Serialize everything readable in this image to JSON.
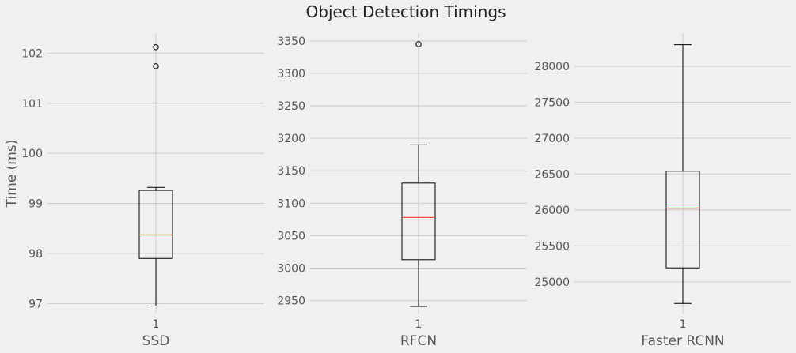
{
  "chart_data": {
    "title": "Object Detection Timings",
    "type": "box",
    "grid": true,
    "subplots": [
      {
        "xlabel": "SSD",
        "ylabel": "Time (ms)",
        "xticks": [
          "1"
        ],
        "ylim": [
          96.8,
          102.4
        ],
        "yticks": [
          97,
          98,
          99,
          100,
          101,
          102
        ],
        "ytick_labels": [
          "97",
          "98",
          "99",
          "100",
          "101",
          "102"
        ],
        "box": {
          "whislo": 96.95,
          "q1": 97.9,
          "med": 98.37,
          "q3": 99.26,
          "whishi": 99.32,
          "fliers": [
            101.74,
            102.12
          ]
        }
      },
      {
        "xlabel": "RFCN",
        "ylabel": "",
        "xticks": [
          "1"
        ],
        "ylim": [
          2930,
          3362
        ],
        "yticks": [
          2950,
          3000,
          3050,
          3100,
          3150,
          3200,
          3250,
          3300,
          3350
        ],
        "ytick_labels": [
          "2950",
          "3000",
          "3050",
          "3100",
          "3150",
          "3200",
          "3250",
          "3300",
          "3350"
        ],
        "box": {
          "whislo": 2941,
          "q1": 3013,
          "med": 3078,
          "q3": 3131,
          "whishi": 3190,
          "fliers": [
            3345
          ]
        }
      },
      {
        "xlabel": "Faster RCNN",
        "ylabel": "",
        "xticks": [
          "1"
        ],
        "ylim": [
          24560,
          28460
        ],
        "yticks": [
          25000,
          25500,
          26000,
          26500,
          27000,
          27500,
          28000
        ],
        "ytick_labels": [
          "25000",
          "25500",
          "26000",
          "26500",
          "27000",
          "27500",
          "28000"
        ],
        "box": {
          "whislo": 24700,
          "q1": 25195,
          "med": 26025,
          "q3": 26540,
          "whishi": 28300,
          "fliers": []
        }
      }
    ]
  }
}
